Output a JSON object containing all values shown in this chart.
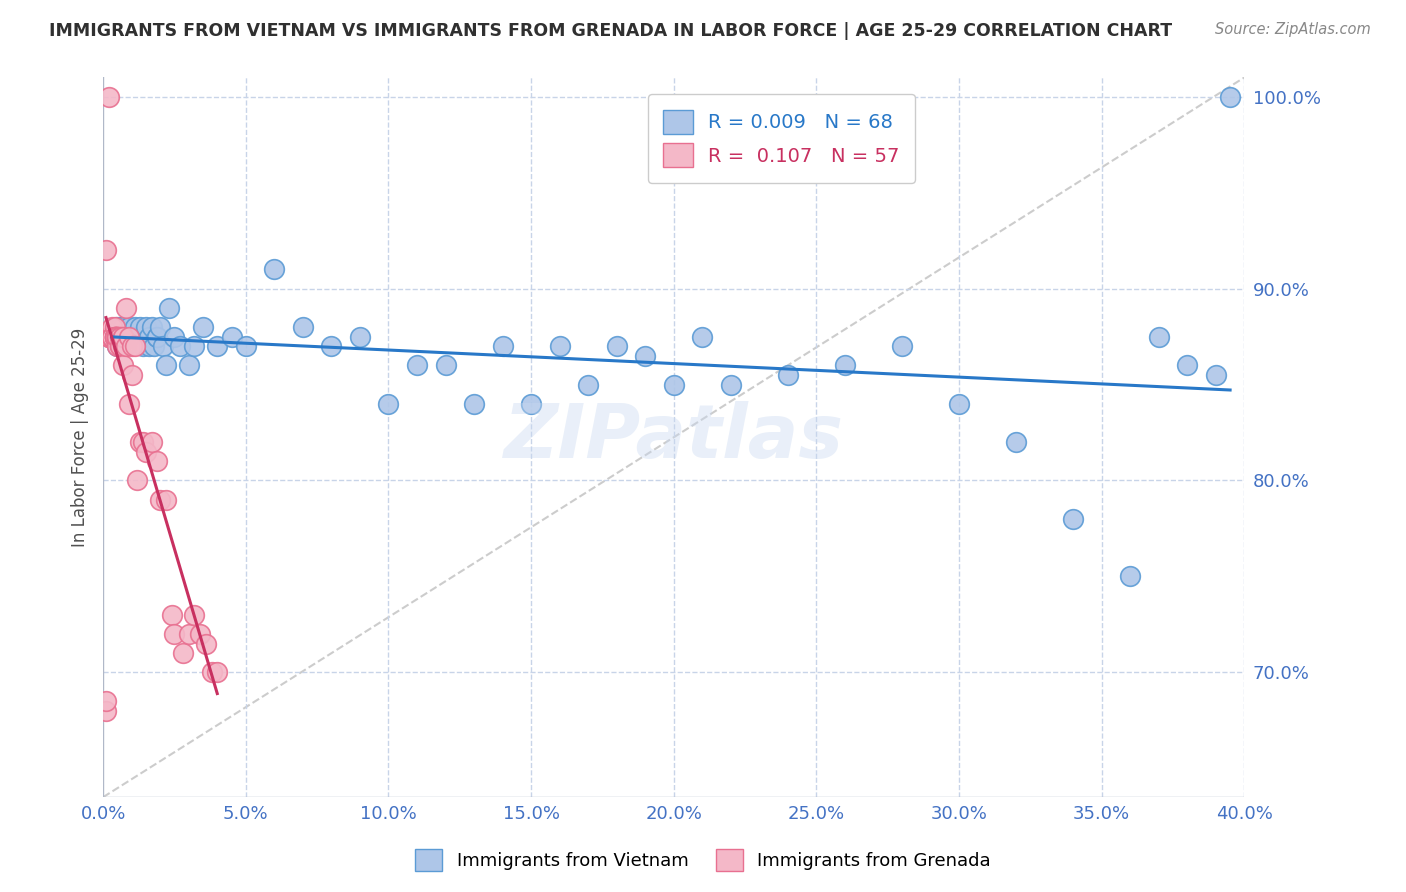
{
  "title": "IMMIGRANTS FROM VIETNAM VS IMMIGRANTS FROM GRENADA IN LABOR FORCE | AGE 25-29 CORRELATION CHART",
  "source": "Source: ZipAtlas.com",
  "ylabel": "In Labor Force | Age 25-29",
  "xlim": [
    0.0,
    0.4
  ],
  "ylim": [
    0.635,
    1.01
  ],
  "yticks": [
    0.7,
    0.8,
    0.9,
    1.0
  ],
  "xticks": [
    0.0,
    0.05,
    0.1,
    0.15,
    0.2,
    0.25,
    0.3,
    0.35,
    0.4
  ],
  "ytick_labels": [
    "70.0%",
    "80.0%",
    "90.0%",
    "100.0%"
  ],
  "xtick_labels": [
    "0.0%",
    "5.0%",
    "10.0%",
    "15.0%",
    "20.0%",
    "25.0%",
    "30.0%",
    "35.0%",
    "40.0%"
  ],
  "vietnam_color": "#aec6e8",
  "grenada_color": "#f4b8c8",
  "vietnam_edge_color": "#5b9bd5",
  "grenada_edge_color": "#e87090",
  "trend_vietnam_color": "#2878c8",
  "trend_grenada_color": "#c83060",
  "R_vietnam": 0.009,
  "N_vietnam": 68,
  "R_grenada": 0.107,
  "N_grenada": 57,
  "legend_label_vietnam": "Immigrants from Vietnam",
  "legend_label_grenada": "Immigrants from Grenada",
  "background_color": "#ffffff",
  "grid_color": "#c8d4e8",
  "title_color": "#303030",
  "axis_color": "#4472c4",
  "watermark": "ZIPatlas",
  "vietnam_x": [
    0.003,
    0.004,
    0.005,
    0.005,
    0.006,
    0.006,
    0.007,
    0.007,
    0.008,
    0.008,
    0.009,
    0.009,
    0.01,
    0.01,
    0.011,
    0.011,
    0.012,
    0.012,
    0.013,
    0.013,
    0.014,
    0.015,
    0.016,
    0.016,
    0.017,
    0.018,
    0.019,
    0.019,
    0.02,
    0.021,
    0.022,
    0.023,
    0.025,
    0.027,
    0.03,
    0.032,
    0.035,
    0.04,
    0.045,
    0.05,
    0.06,
    0.07,
    0.08,
    0.09,
    0.1,
    0.11,
    0.12,
    0.13,
    0.14,
    0.15,
    0.16,
    0.17,
    0.18,
    0.19,
    0.2,
    0.21,
    0.22,
    0.24,
    0.26,
    0.28,
    0.3,
    0.32,
    0.34,
    0.36,
    0.37,
    0.38,
    0.39,
    0.395
  ],
  "vietnam_y": [
    0.875,
    0.875,
    0.88,
    0.87,
    0.875,
    0.88,
    0.875,
    0.88,
    0.875,
    0.875,
    0.88,
    0.875,
    0.875,
    0.875,
    0.88,
    0.875,
    0.875,
    0.875,
    0.875,
    0.88,
    0.87,
    0.88,
    0.875,
    0.87,
    0.88,
    0.87,
    0.875,
    0.875,
    0.88,
    0.87,
    0.86,
    0.89,
    0.875,
    0.87,
    0.86,
    0.87,
    0.88,
    0.87,
    0.875,
    0.87,
    0.91,
    0.88,
    0.87,
    0.875,
    0.84,
    0.86,
    0.86,
    0.84,
    0.87,
    0.84,
    0.87,
    0.85,
    0.87,
    0.865,
    0.85,
    0.875,
    0.85,
    0.855,
    0.86,
    0.87,
    0.84,
    0.82,
    0.78,
    0.75,
    0.875,
    0.86,
    0.855,
    1.0
  ],
  "grenada_x": [
    0.001,
    0.001,
    0.001,
    0.002,
    0.002,
    0.002,
    0.002,
    0.003,
    0.003,
    0.003,
    0.003,
    0.003,
    0.003,
    0.004,
    0.004,
    0.004,
    0.004,
    0.004,
    0.004,
    0.005,
    0.005,
    0.005,
    0.005,
    0.005,
    0.005,
    0.006,
    0.006,
    0.006,
    0.006,
    0.007,
    0.007,
    0.007,
    0.007,
    0.008,
    0.008,
    0.009,
    0.009,
    0.01,
    0.01,
    0.011,
    0.012,
    0.013,
    0.014,
    0.015,
    0.017,
    0.019,
    0.02,
    0.022,
    0.024,
    0.025,
    0.028,
    0.03,
    0.032,
    0.034,
    0.036,
    0.038,
    0.04
  ],
  "grenada_y": [
    0.68,
    0.685,
    0.92,
    0.875,
    0.875,
    0.875,
    1.0,
    0.875,
    0.875,
    0.88,
    0.875,
    0.875,
    0.875,
    0.88,
    0.875,
    0.875,
    0.875,
    0.875,
    0.875,
    0.875,
    0.875,
    0.875,
    0.87,
    0.875,
    0.875,
    0.87,
    0.875,
    0.87,
    0.875,
    0.87,
    0.875,
    0.875,
    0.86,
    0.89,
    0.87,
    0.875,
    0.84,
    0.87,
    0.855,
    0.87,
    0.8,
    0.82,
    0.82,
    0.815,
    0.82,
    0.81,
    0.79,
    0.79,
    0.73,
    0.72,
    0.71,
    0.72,
    0.73,
    0.72,
    0.715,
    0.7,
    0.7
  ]
}
